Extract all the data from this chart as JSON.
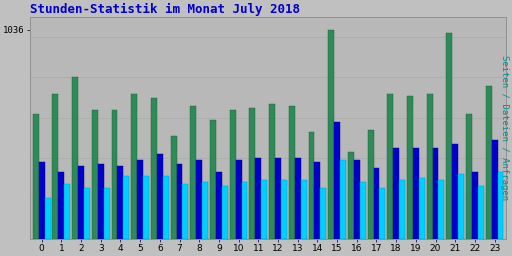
{
  "title": "Stunden-Statistik im Monat July 2018",
  "ylabel": "Seiten / Dateien / Anfragen",
  "hours": [
    0,
    1,
    2,
    3,
    4,
    5,
    6,
    7,
    8,
    9,
    10,
    11,
    12,
    13,
    14,
    15,
    16,
    17,
    18,
    19,
    20,
    21,
    22,
    23
  ],
  "green_values": [
    620,
    720,
    800,
    640,
    640,
    720,
    700,
    510,
    660,
    590,
    640,
    650,
    670,
    660,
    530,
    1036,
    430,
    540,
    720,
    710,
    720,
    1020,
    620,
    760
  ],
  "blue_values": [
    380,
    330,
    360,
    370,
    360,
    390,
    420,
    370,
    390,
    330,
    390,
    400,
    400,
    400,
    380,
    580,
    390,
    350,
    450,
    450,
    450,
    470,
    330,
    490
  ],
  "cyan_values": [
    200,
    270,
    250,
    250,
    310,
    310,
    310,
    270,
    280,
    260,
    280,
    290,
    290,
    290,
    250,
    390,
    280,
    250,
    290,
    300,
    290,
    320,
    260,
    330
  ],
  "green_color": "#2E8B57",
  "blue_color": "#0000CD",
  "cyan_color": "#00CFFF",
  "bg_color": "#C0C0C0",
  "plot_bg_color": "#B8B8B8",
  "title_color": "#0000CC",
  "ylabel_color": "#009090",
  "grid_color": "#AAAAAA",
  "ylim_max": 1100,
  "ytick_val": 1036,
  "title_fontsize": 9,
  "ylabel_fontsize": 6.5,
  "tick_fontsize": 6.5
}
